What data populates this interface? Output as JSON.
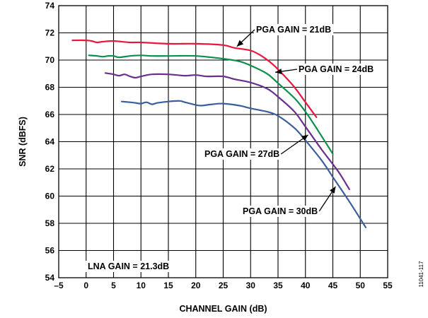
{
  "figure_id": "11041-117",
  "chart_data": {
    "type": "line",
    "xlabel": "CHANNEL GAIN (dB)",
    "ylabel": "SNR (dBFS)",
    "xlim": [
      -5,
      55
    ],
    "ylim": [
      54,
      74
    ],
    "xticks": [
      -5,
      0,
      5,
      10,
      15,
      20,
      25,
      30,
      35,
      40,
      45,
      50,
      55
    ],
    "yticks": [
      54,
      56,
      58,
      60,
      62,
      64,
      66,
      68,
      70,
      72,
      74
    ],
    "grid": true,
    "series": [
      {
        "name": "PGA GAIN = 21dB",
        "color": "#e8173f",
        "x": [
          -2.5,
          0,
          1,
          2,
          3,
          5,
          8,
          10,
          15,
          20,
          25,
          27,
          30,
          32,
          34,
          36,
          38,
          40,
          42
        ],
        "y": [
          71.45,
          71.45,
          71.4,
          71.3,
          71.35,
          71.4,
          71.3,
          71.3,
          71.2,
          71.2,
          71.1,
          70.9,
          70.7,
          70.3,
          69.7,
          68.9,
          68.0,
          66.9,
          65.8
        ]
      },
      {
        "name": "PGA GAIN = 24dB",
        "color": "#0b8f4d",
        "x": [
          0.5,
          2,
          3,
          4,
          5,
          6,
          8,
          10,
          12,
          15,
          20,
          25,
          28,
          30,
          33,
          35,
          38,
          40,
          42,
          45
        ],
        "y": [
          70.35,
          70.3,
          70.25,
          70.3,
          70.3,
          70.2,
          70.3,
          70.35,
          70.3,
          70.3,
          70.3,
          70.1,
          69.9,
          69.6,
          69.0,
          68.3,
          67.2,
          66.2,
          65.0,
          63.1
        ]
      },
      {
        "name": "PGA GAIN = 27dB",
        "color": "#6b2f8f",
        "x": [
          3.5,
          5,
          6,
          7,
          8,
          9,
          10,
          12,
          15,
          18,
          20,
          22,
          25,
          27,
          30,
          33,
          35,
          38,
          40,
          43,
          46,
          48
        ],
        "y": [
          69.05,
          68.95,
          68.85,
          68.95,
          68.8,
          68.7,
          68.8,
          68.95,
          68.95,
          68.85,
          68.9,
          68.8,
          68.8,
          68.6,
          68.35,
          67.9,
          67.3,
          66.2,
          65.1,
          63.4,
          61.8,
          60.5
        ]
      },
      {
        "name": "PGA GAIN = 30dB",
        "color": "#3a5f9c",
        "x": [
          6.5,
          8,
          9,
          10,
          11,
          12,
          13,
          15,
          17,
          18,
          20,
          21,
          23,
          25,
          28,
          30,
          33,
          35,
          38,
          40,
          43,
          45,
          48,
          51
        ],
        "y": [
          66.95,
          66.9,
          66.85,
          66.8,
          66.9,
          66.75,
          66.85,
          66.95,
          67.0,
          66.9,
          66.7,
          66.65,
          66.75,
          66.8,
          66.65,
          66.45,
          66.2,
          65.9,
          65.0,
          64.1,
          62.6,
          61.4,
          59.6,
          57.7
        ]
      }
    ],
    "annotations": [
      {
        "text": "PGA GAIN = 21dB",
        "series": 0,
        "anchor_x": 27.5,
        "anchor_y": 71.0
      },
      {
        "text": "PGA GAIN = 24dB",
        "series": 1,
        "anchor_x": 34.5,
        "anchor_y": 69.1
      },
      {
        "text": "PGA GAIN = 27dB",
        "series": 2,
        "anchor_x": 40.5,
        "anchor_y": 64.5
      },
      {
        "text": "PGA GAIN = 30dB",
        "series": 3,
        "anchor_x": 45.5,
        "anchor_y": 60.7
      },
      {
        "text": "LNA GAIN = 21.3dB",
        "series": null,
        "anchor_x": null,
        "anchor_y": null
      }
    ]
  }
}
